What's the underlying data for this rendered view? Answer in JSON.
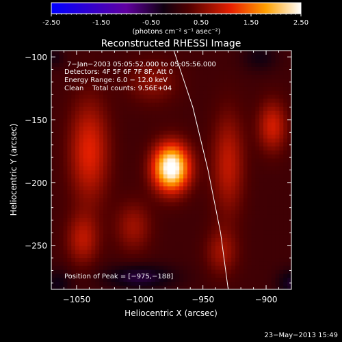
{
  "colorbar": {
    "ticks": [
      "-2.50",
      "-1.50",
      "-0.50",
      "0.50",
      "1.50",
      "2.50"
    ],
    "tick_values": [
      -2.5,
      -1.5,
      -0.5,
      0.5,
      1.5,
      2.5
    ],
    "range": [
      -2.5,
      2.5
    ],
    "units_label": "(photons cm⁻² s⁻¹ asec⁻²)",
    "colormap": "blue-purple-black-red-yellow-white"
  },
  "chart_data": {
    "type": "heatmap",
    "title": "Reconstructed RHESSI Image",
    "xlabel": "Heliocentric X (arcsec)",
    "ylabel": "Heliocentric Y (arcsec)",
    "xlim": [
      -1070,
      -880
    ],
    "ylim": [
      -285,
      -95
    ],
    "x_ticks": [
      -1050,
      -1000,
      -950,
      -900
    ],
    "x_tick_labels": [
      "−1050",
      "−1000",
      "−950",
      "−900"
    ],
    "y_ticks": [
      -100,
      -150,
      -200,
      -250
    ],
    "y_tick_labels": [
      "−100",
      "−150",
      "−200",
      "−250"
    ],
    "peak": {
      "x": -975,
      "y": -188,
      "value": 2.5
    },
    "sources": [
      {
        "x": -975,
        "y": -188,
        "sx": 10,
        "sy": 13,
        "amp": 2.6
      },
      {
        "x": -1040,
        "y": -175,
        "sx": 11,
        "sy": 28,
        "amp": 0.95
      },
      {
        "x": -1045,
        "y": -245,
        "sx": 9,
        "sy": 14,
        "amp": 0.7
      },
      {
        "x": -1005,
        "y": -235,
        "sx": 10,
        "sy": 14,
        "amp": 0.55
      },
      {
        "x": -930,
        "y": -185,
        "sx": 9,
        "sy": 28,
        "amp": 0.75
      },
      {
        "x": -895,
        "y": -155,
        "sx": 8,
        "sy": 14,
        "amp": 0.85
      },
      {
        "x": -935,
        "y": -255,
        "sx": 9,
        "sy": 13,
        "amp": 0.55
      },
      {
        "x": -990,
        "y": -120,
        "sx": 14,
        "sy": 12,
        "amp": 0.45
      },
      {
        "x": -1000,
        "y": -275,
        "sx": 20,
        "sy": 7,
        "amp": -0.6
      },
      {
        "x": -880,
        "y": -280,
        "sx": 8,
        "sy": 8,
        "amp": -0.5
      },
      {
        "x": -1065,
        "y": -280,
        "sx": 8,
        "sy": 8,
        "amp": -0.4
      },
      {
        "x": -905,
        "y": -100,
        "sx": 10,
        "sy": 8,
        "amp": -0.35
      },
      {
        "x": -1068,
        "y": -100,
        "sx": 6,
        "sy": 6,
        "amp": -0.3
      }
    ],
    "limb_curve": [
      {
        "x": -973,
        "y": -95
      },
      {
        "x": -958,
        "y": -140
      },
      {
        "x": -946,
        "y": -190
      },
      {
        "x": -936,
        "y": -240
      },
      {
        "x": -930,
        "y": -285
      }
    ]
  },
  "info": {
    "time_range": "7−Jan−2003 05:05:52.000 to 05:05:56.000",
    "detectors": "Detectors: 4F 5F 6F 7F 8F, Att 0",
    "energy": "Energy Range: 6.0 − 12.0 keV",
    "clean": "Clean    Total counts: 9.56E+04",
    "peak_label": "Position of Peak = [−975,−188]"
  },
  "timestamp": "23−May−2013 15:49"
}
